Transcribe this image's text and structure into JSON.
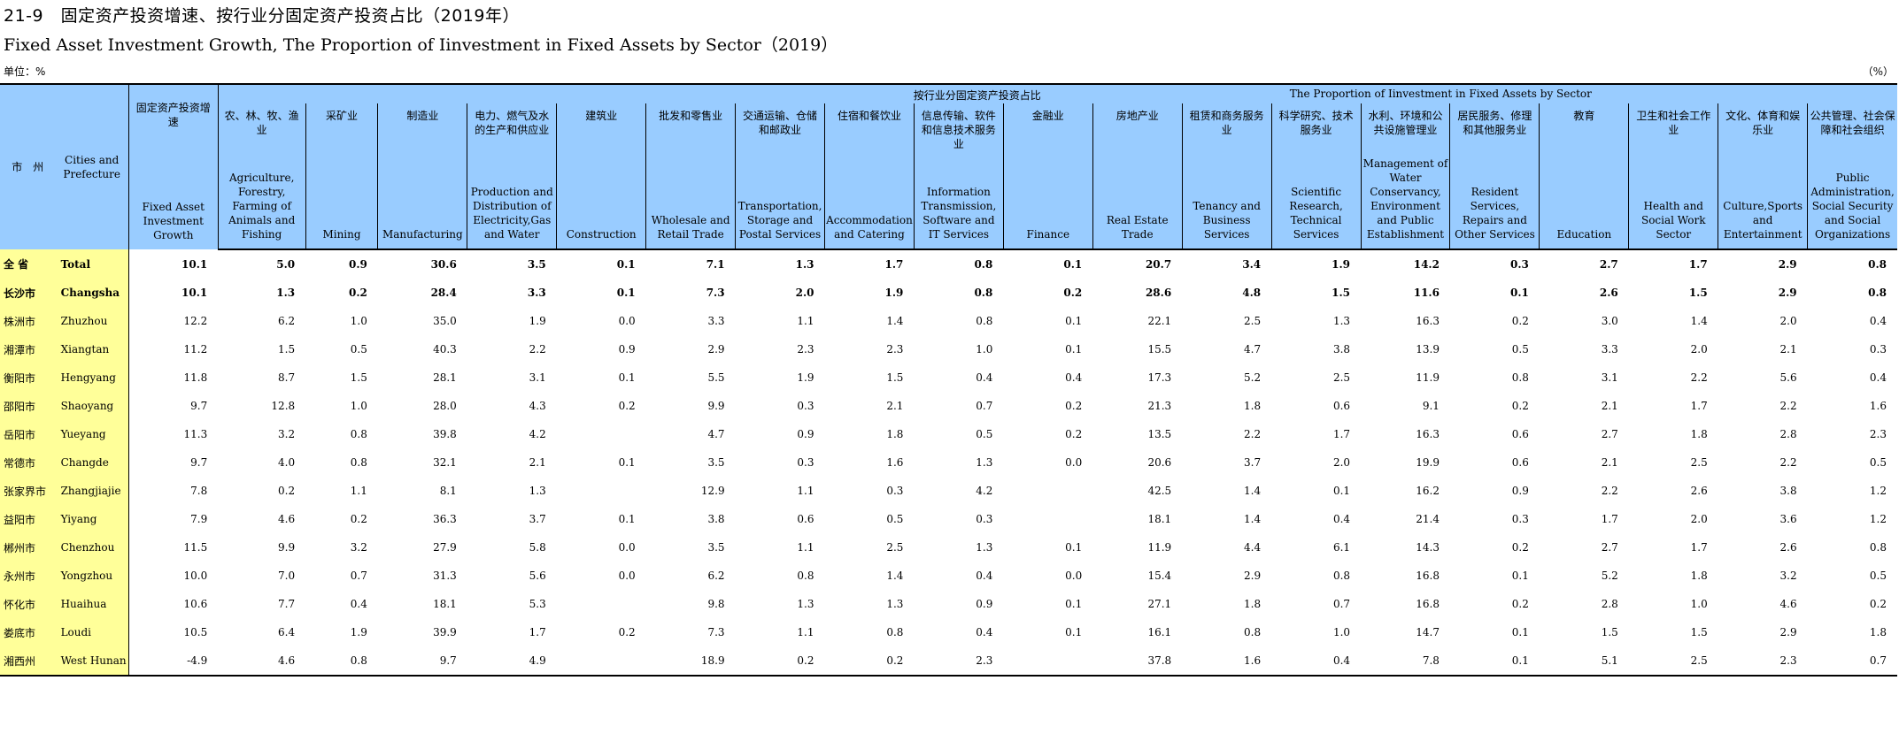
{
  "title_cn": "21-9　固定资产投资增速、按行业分固定资产投资占比（2019年）",
  "title_en": "Fixed Asset Investment Growth, The Proportion of Iinvestment in Fixed Assets by Sector（2019）",
  "unit_left": "单位：%",
  "unit_right": "（%）",
  "header": {
    "city_cn": "市　州",
    "city_en": "Cities and Prefecture",
    "growth_cn": "固定资产投资增速",
    "growth_en": "Fixed Asset Investment Growth",
    "group_cn": "按行业分固定资产投资占比",
    "group_en": "The Proportion of Iinvestment in Fixed Assets by Sector",
    "sectors": [
      {
        "cn": "农、林、牧、渔业",
        "en": "Agriculture, Forestry, Farming of Animals and Fishing"
      },
      {
        "cn": "采矿业",
        "en": "Mining"
      },
      {
        "cn": "制造业",
        "en": "Manufacturing"
      },
      {
        "cn": "电力、燃气及水的生产和供应业",
        "en": "Production and Distribution of Electricity,Gas and Water"
      },
      {
        "cn": "建筑业",
        "en": "Construction"
      },
      {
        "cn": "批发和零售业",
        "en": "Wholesale and Retail Trade"
      },
      {
        "cn": "交通运输、仓储和邮政业",
        "en": "Transportation, Storage and Postal Services"
      },
      {
        "cn": "住宿和餐饮业",
        "en": "Accommodation and Catering"
      },
      {
        "cn": "信息传输、软件和信息技术服务业",
        "en": "Information Transmission, Software and IT Services"
      },
      {
        "cn": "金融业",
        "en": "Finance"
      },
      {
        "cn": "房地产业",
        "en": "Real Estate Trade"
      },
      {
        "cn": "租赁和商务服务业",
        "en": "Tenancy and Business Services"
      },
      {
        "cn": "科学研究、技术服务业",
        "en": "Scientific Research, Technical Services"
      },
      {
        "cn": "水利、环境和公共设施管理业",
        "en": "Management of Water Conservancy, Environment and Public Establishment"
      },
      {
        "cn": "居民服务、修理和其他服务业",
        "en": "Resident Services, Repairs and Other Services"
      },
      {
        "cn": "教育",
        "en": "Education"
      },
      {
        "cn": "卫生和社会工作业",
        "en": "Health and Social Work Sector"
      },
      {
        "cn": "文化、体育和娱乐业",
        "en": "Culture,Sports and Entertainment"
      },
      {
        "cn": "公共管理、社会保障和社会组织",
        "en": "Public Administration, Social Security and Social Organizations"
      }
    ]
  },
  "rows": [
    {
      "cn": "全 省",
      "en": "Total",
      "v": [
        "10.1",
        "5.0",
        "0.9",
        "30.6",
        "3.5",
        "0.1",
        "7.1",
        "1.3",
        "1.7",
        "0.8",
        "0.1",
        "20.7",
        "3.4",
        "1.9",
        "14.2",
        "0.3",
        "2.7",
        "1.7",
        "2.9",
        "0.8"
      ]
    },
    {
      "cn": "长沙市",
      "en": "Changsha",
      "v": [
        "10.1",
        "1.3",
        "0.2",
        "28.4",
        "3.3",
        "0.1",
        "7.3",
        "2.0",
        "1.9",
        "0.8",
        "0.2",
        "28.6",
        "4.8",
        "1.5",
        "11.6",
        "0.1",
        "2.6",
        "1.5",
        "2.9",
        "0.8"
      ]
    },
    {
      "cn": "株洲市",
      "en": "Zhuzhou",
      "v": [
        "12.2",
        "6.2",
        "1.0",
        "35.0",
        "1.9",
        "0.0",
        "3.3",
        "1.1",
        "1.4",
        "0.8",
        "0.1",
        "22.1",
        "2.5",
        "1.3",
        "16.3",
        "0.2",
        "3.0",
        "1.4",
        "2.0",
        "0.4"
      ]
    },
    {
      "cn": "湘潭市",
      "en": "Xiangtan",
      "v": [
        "11.2",
        "1.5",
        "0.5",
        "40.3",
        "2.2",
        "0.9",
        "2.9",
        "2.3",
        "2.3",
        "1.0",
        "0.1",
        "15.5",
        "4.7",
        "3.8",
        "13.9",
        "0.5",
        "3.3",
        "2.0",
        "2.1",
        "0.3"
      ]
    },
    {
      "cn": "衡阳市",
      "en": "Hengyang",
      "v": [
        "11.8",
        "8.7",
        "1.5",
        "28.1",
        "3.1",
        "0.1",
        "5.5",
        "1.9",
        "1.5",
        "0.4",
        "0.4",
        "17.3",
        "5.2",
        "2.5",
        "11.9",
        "0.8",
        "3.1",
        "2.2",
        "5.6",
        "0.4"
      ]
    },
    {
      "cn": "邵阳市",
      "en": "Shaoyang",
      "v": [
        "9.7",
        "12.8",
        "1.0",
        "28.0",
        "4.3",
        "0.2",
        "9.9",
        "0.3",
        "2.1",
        "0.7",
        "0.2",
        "21.3",
        "1.8",
        "0.6",
        "9.1",
        "0.2",
        "2.1",
        "1.7",
        "2.2",
        "1.6"
      ]
    },
    {
      "cn": "岳阳市",
      "en": "Yueyang",
      "v": [
        "11.3",
        "3.2",
        "0.8",
        "39.8",
        "4.2",
        "",
        "4.7",
        "0.9",
        "1.8",
        "0.5",
        "0.2",
        "13.5",
        "2.2",
        "1.7",
        "16.3",
        "0.6",
        "2.7",
        "1.8",
        "2.8",
        "2.3"
      ]
    },
    {
      "cn": "常德市",
      "en": "Changde",
      "v": [
        "9.7",
        "4.0",
        "0.8",
        "32.1",
        "2.1",
        "0.1",
        "3.5",
        "0.3",
        "1.6",
        "1.3",
        "0.0",
        "20.6",
        "3.7",
        "2.0",
        "19.9",
        "0.6",
        "2.1",
        "2.5",
        "2.2",
        "0.5"
      ]
    },
    {
      "cn": "张家界市",
      "en": "Zhangjiajie",
      "v": [
        "7.8",
        "0.2",
        "1.1",
        "8.1",
        "1.3",
        "",
        "12.9",
        "1.1",
        "0.3",
        "4.2",
        "",
        "42.5",
        "1.4",
        "0.1",
        "16.2",
        "0.9",
        "2.2",
        "2.6",
        "3.8",
        "1.2"
      ]
    },
    {
      "cn": "益阳市",
      "en": "Yiyang",
      "v": [
        "7.9",
        "4.6",
        "0.2",
        "36.3",
        "3.7",
        "0.1",
        "3.8",
        "0.6",
        "0.5",
        "0.3",
        "",
        "18.1",
        "1.4",
        "0.4",
        "21.4",
        "0.3",
        "1.7",
        "2.0",
        "3.6",
        "1.2"
      ]
    },
    {
      "cn": "郴州市",
      "en": "Chenzhou",
      "v": [
        "11.5",
        "9.9",
        "3.2",
        "27.9",
        "5.8",
        "0.0",
        "3.5",
        "1.1",
        "2.5",
        "1.3",
        "0.1",
        "11.9",
        "4.4",
        "6.1",
        "14.3",
        "0.2",
        "2.7",
        "1.7",
        "2.6",
        "0.8"
      ]
    },
    {
      "cn": "永州市",
      "en": "Yongzhou",
      "v": [
        "10.0",
        "7.0",
        "0.7",
        "31.3",
        "5.6",
        "0.0",
        "6.2",
        "0.8",
        "1.4",
        "0.4",
        "0.0",
        "15.4",
        "2.9",
        "0.8",
        "16.8",
        "0.1",
        "5.2",
        "1.8",
        "3.2",
        "0.5"
      ]
    },
    {
      "cn": "怀化市",
      "en": "Huaihua",
      "v": [
        "10.6",
        "7.7",
        "0.4",
        "18.1",
        "5.3",
        "",
        "9.8",
        "1.3",
        "1.3",
        "0.9",
        "0.1",
        "27.1",
        "1.8",
        "0.7",
        "16.8",
        "0.2",
        "2.8",
        "1.0",
        "4.6",
        "0.2"
      ]
    },
    {
      "cn": "娄底市",
      "en": "Loudi",
      "v": [
        "10.5",
        "6.4",
        "1.9",
        "39.9",
        "1.7",
        "0.2",
        "7.3",
        "1.1",
        "0.8",
        "0.4",
        "0.1",
        "16.1",
        "0.8",
        "1.0",
        "14.7",
        "0.1",
        "1.5",
        "1.5",
        "2.9",
        "1.8"
      ]
    },
    {
      "cn": "湘西州",
      "en": "West Hunan",
      "v": [
        "-4.9",
        "4.6",
        "0.8",
        "9.7",
        "4.9",
        "",
        "18.9",
        "0.2",
        "0.2",
        "2.3",
        "",
        "37.8",
        "1.6",
        "0.4",
        "7.8",
        "0.1",
        "5.1",
        "2.5",
        "2.3",
        "0.7"
      ]
    }
  ]
}
